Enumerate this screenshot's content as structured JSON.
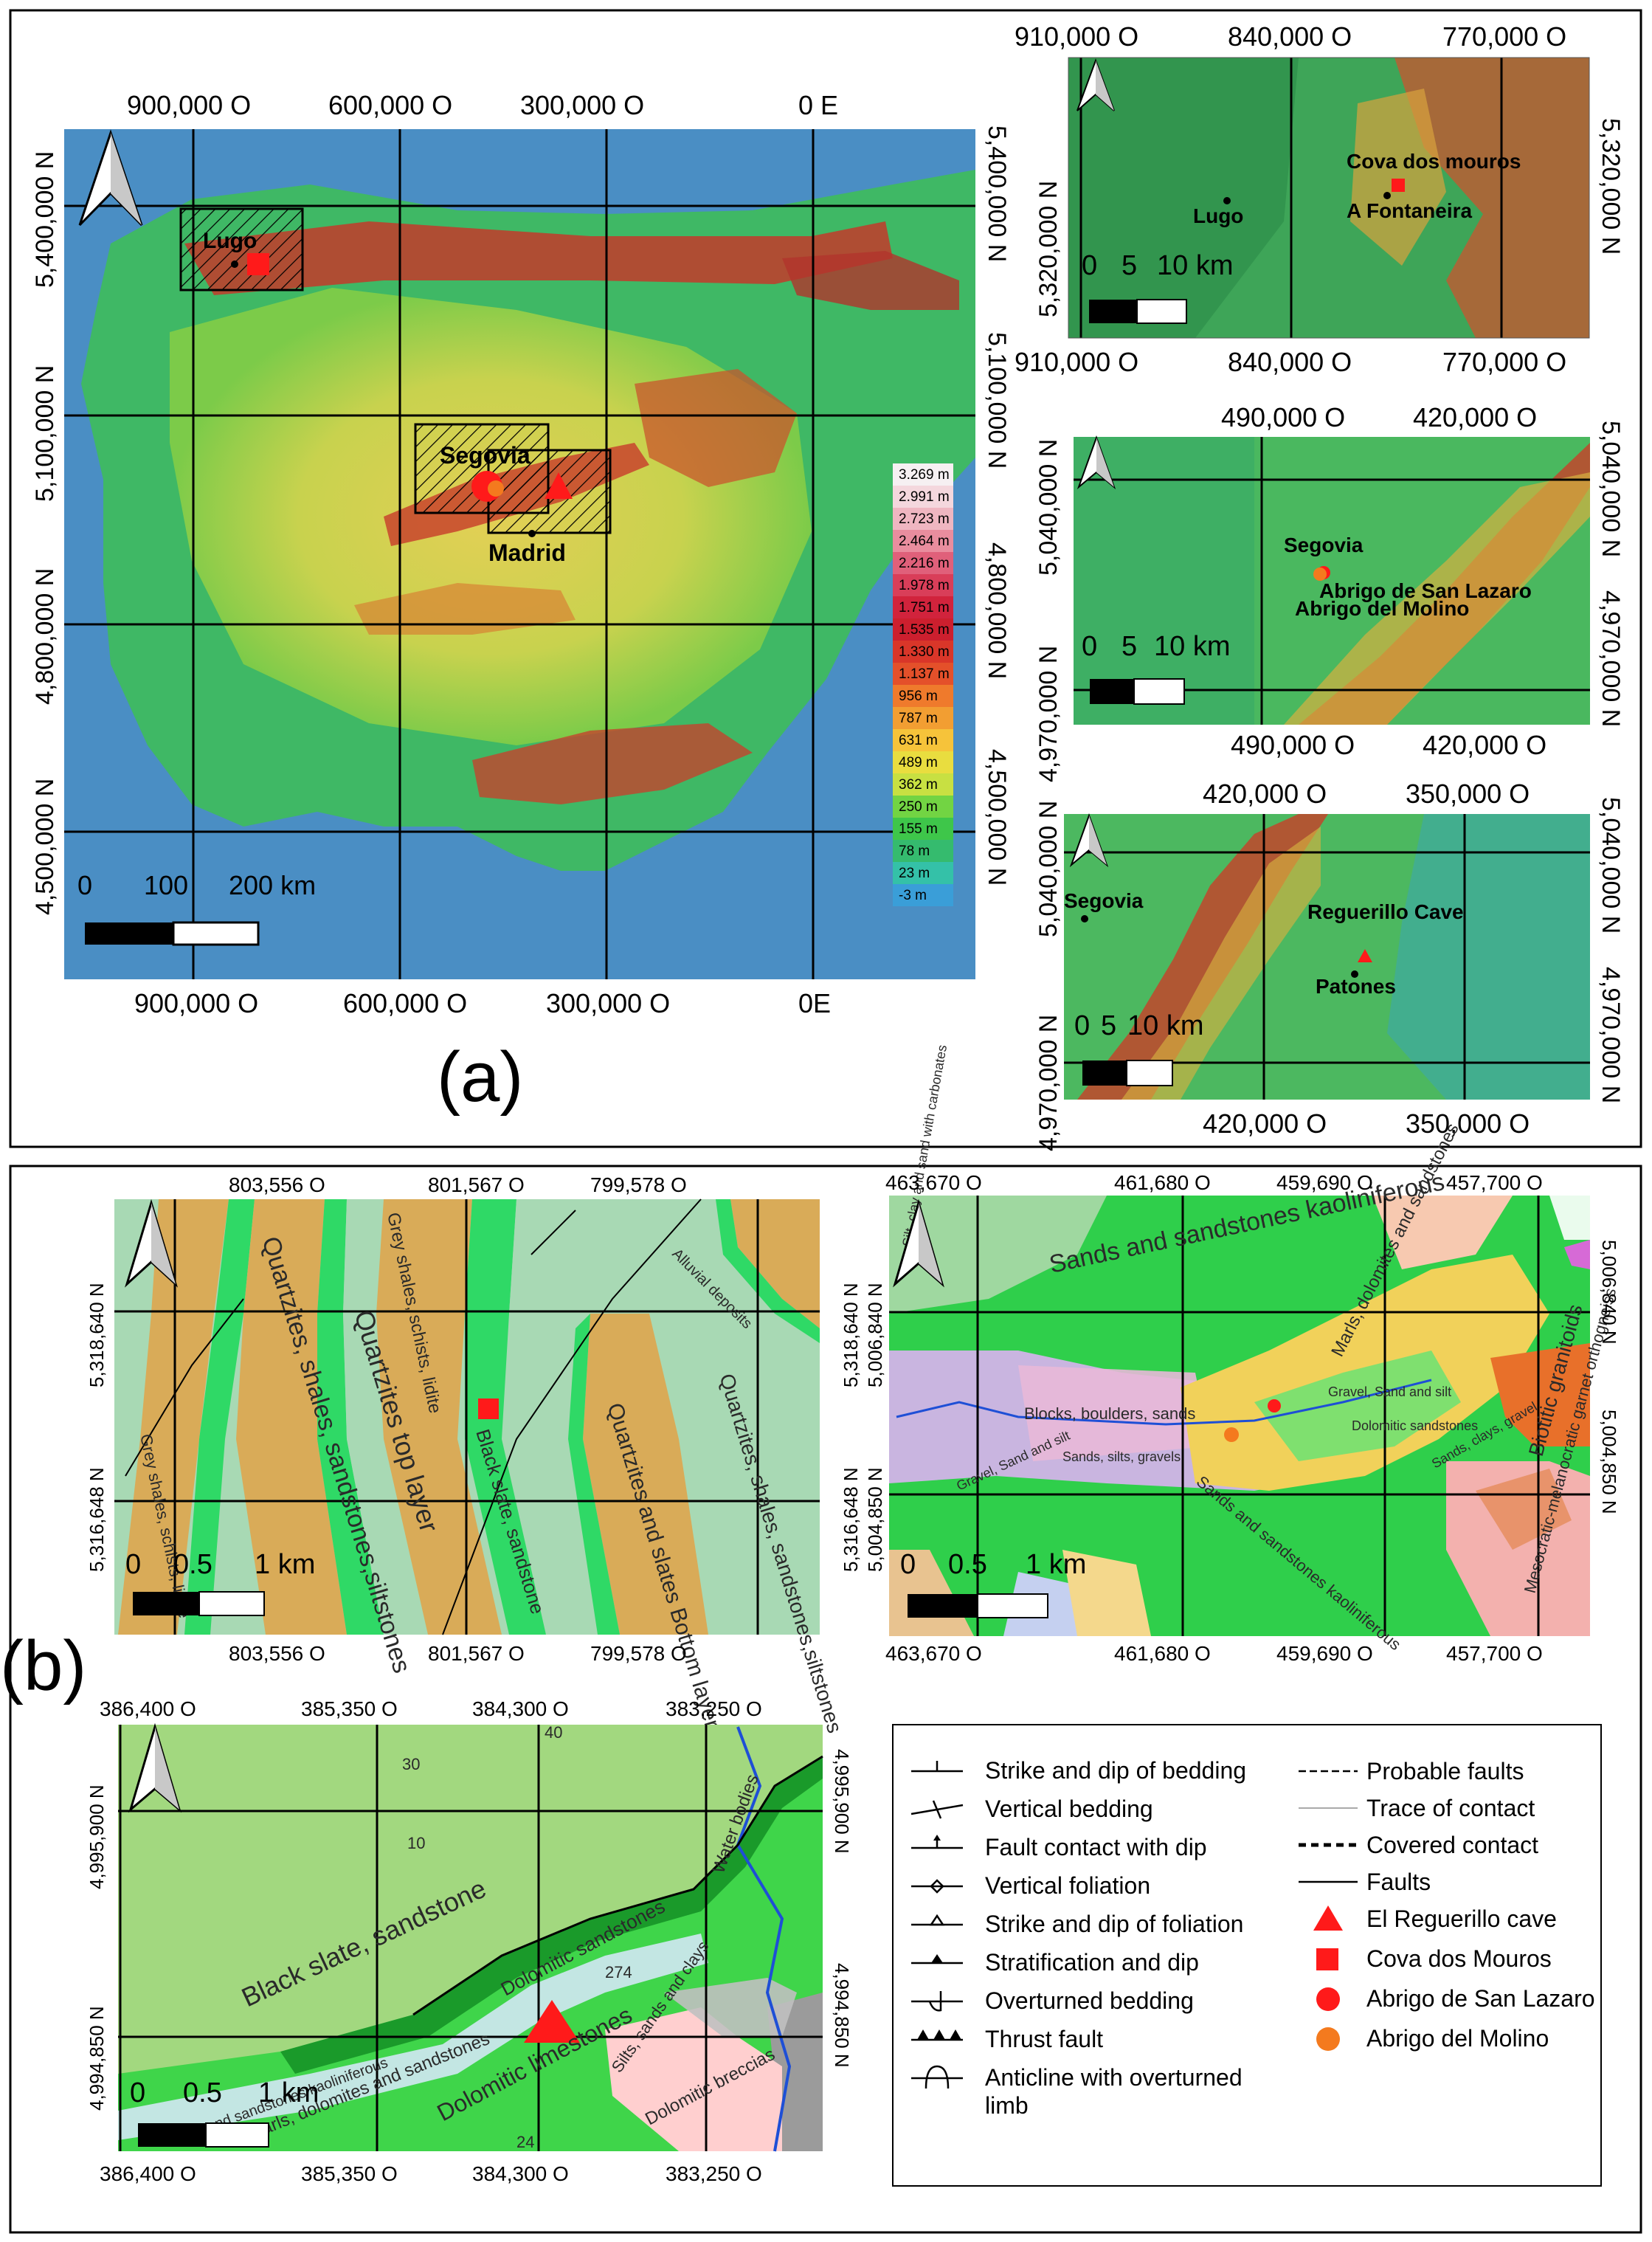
{
  "panel_labels": {
    "a": "(a)",
    "b": "(b)"
  },
  "maps": [
    {
      "id": "iberia",
      "ticks_top": [
        "900,000 O",
        "600,000 O",
        "300,000 O",
        "0 E"
      ],
      "ticks_bottom": [
        "900,000 O",
        "600,000 O",
        "300,000 O",
        "0E"
      ],
      "ticks_left": [
        "5,400,000 N",
        "5,100,000 N",
        "4,800,000 N",
        "4,500,000 N"
      ],
      "ticks_right": [
        "5,400,000 N",
        "5,100,000 N",
        "4,800,000 N",
        "4,500,000 N"
      ],
      "scale": {
        "labels": [
          "0",
          "100",
          "200 km"
        ]
      },
      "places": [
        {
          "name": "Lugo"
        },
        {
          "name": "Segovia"
        },
        {
          "name": "Madrid"
        }
      ],
      "elevation_legend": [
        "3.269 m",
        "2.991 m",
        "2.723 m",
        "2.464 m",
        "2.216 m",
        "1.978 m",
        "1.751 m",
        "1.535 m",
        "1.330 m",
        "1.137 m",
        "956 m",
        "787 m",
        "631 m",
        "489 m",
        "362 m",
        "250 m",
        "155 m",
        "78 m",
        "23 m",
        "-3 m"
      ],
      "elevation_colors": [
        "#f6f0f2",
        "#f4d7dd",
        "#efb6c1",
        "#e98d9e",
        "#e0607a",
        "#d93e59",
        "#d1233c",
        "#cc1f2e",
        "#d93629",
        "#e4502a",
        "#ef7a2c",
        "#f29e32",
        "#f6c33a",
        "#e9dd3f",
        "#c8e042",
        "#72d443",
        "#3ec64a",
        "#35bb6e",
        "#34c1a8",
        "#3a9ed8"
      ]
    },
    {
      "id": "lugo-inset",
      "ticks_top": [
        "910,000 O",
        "840,000 O",
        "770,000 O"
      ],
      "ticks_bottom": [
        "910,000 O",
        "840,000 O",
        "770,000 O"
      ],
      "ticks_left": [
        "5,320,000 N"
      ],
      "ticks_right": [
        "5,320,000 N"
      ],
      "scale": {
        "labels": [
          "0",
          "5",
          "10 km"
        ]
      },
      "places": [
        {
          "name": "Lugo"
        },
        {
          "name": "Cova dos mouros"
        },
        {
          "name": "A Fontaneira"
        }
      ]
    },
    {
      "id": "segovia-inset",
      "ticks_top": [
        "490,000 O",
        "420,000 O"
      ],
      "ticks_bottom": [
        "490,000 O",
        "420,000 O"
      ],
      "ticks_left": [
        "5,040,000 N",
        "4,970,000 N"
      ],
      "ticks_right": [
        "5,040,000 N",
        "4,970,000 N"
      ],
      "scale": {
        "labels": [
          "0",
          "5",
          "10 km"
        ]
      },
      "places": [
        {
          "name": "Segovia"
        },
        {
          "name": "Abrigo de San Lazaro"
        },
        {
          "name": "Abrigo del Molino"
        }
      ]
    },
    {
      "id": "patones-inset",
      "ticks_top": [
        "420,000 O",
        "350,000 O"
      ],
      "ticks_bottom": [
        "420,000 O",
        "350,000 O"
      ],
      "ticks_left": [
        "5,040,000 N",
        "4,970,000 N"
      ],
      "ticks_right": [
        "5,040,000 N",
        "4,970,000 N"
      ],
      "scale": {
        "labels": [
          "0",
          "5",
          "10 km"
        ]
      },
      "places": [
        {
          "name": "Segovia"
        },
        {
          "name": "Reguerillo Cave"
        },
        {
          "name": "Patones"
        }
      ]
    },
    {
      "id": "geo-lugo",
      "ticks_top": [
        "803,556 O",
        "801,567 O",
        "799,578 O"
      ],
      "ticks_bottom": [
        "803,556 O",
        "801,567 O",
        "799,578 O"
      ],
      "ticks_left": [
        "5,318,640 N",
        "5,316,648 N"
      ],
      "scale": {
        "labels": [
          "0",
          "0.5",
          "1 km"
        ]
      },
      "units": [
        "Quartzites, shales, sandstones,siltstones",
        "Quartzites top layer",
        "Grey shales, schists, lidite",
        "Black slate, sandstone",
        "Quartzites and slates Bottom layer.",
        "Quartzites, shales, sandstones,siltstones",
        "Alluvial deposits",
        "Grey shales, schists, lidite"
      ]
    },
    {
      "id": "geo-segovia",
      "ticks_top": [
        "463,670 O",
        "461,680 O",
        "459,690 O",
        "457,700 O"
      ],
      "ticks_bottom": [
        "463,670 O",
        "461,680 O",
        "459,690 O",
        "457,700 O"
      ],
      "ticks_left": [
        "5,318,640 N",
        "5,316,648 N"
      ],
      "ticks_left_inner": [
        "5,006,840 N",
        "5,004,850 N"
      ],
      "ticks_right": [
        "5,006,840 N",
        "5,004,850 N"
      ],
      "scale": {
        "labels": [
          "0",
          "0.5",
          "1 km"
        ]
      },
      "units": [
        "Sands and sandstones kaoliniferous",
        "Blocks, boulders, sands",
        "Marls, dolomites and sandstones",
        "Biotitic granitoids",
        "Sands and sandstones kaoliniferous",
        "Mesocratic-melanocratic garnet orthogneiss",
        "Dolomitic sandstones",
        "Gravel, Sand and silt",
        "Sands, clays, gravel",
        "Silt, clay and sand with carbonates",
        "Gravel, Sand and silt",
        "Sands, silts, gravels"
      ]
    },
    {
      "id": "geo-patones",
      "ticks_top": [
        "386,400 O",
        "385,350 O",
        "384,300 O",
        "383,250 O"
      ],
      "ticks_bottom": [
        "386,400 O",
        "385,350 O",
        "384,300 O",
        "383,250 O"
      ],
      "ticks_left": [
        "4,995,900 N",
        "4,994,850 N"
      ],
      "ticks_right": [
        "4,995,900 N",
        "4,994,850 N"
      ],
      "scale": {
        "labels": [
          "0",
          "0.5",
          "1 km"
        ]
      },
      "units": [
        "Black slate, sandstone",
        "Dolomitic sandstones",
        "Sands and sandstones kaoliniferous",
        "Marls, dolomites and sandstones",
        "Dolomitic limestones",
        "Silts, sands and clays",
        "Dolomitic breccias",
        "Water bodies"
      ],
      "numbers": [
        "30",
        "10",
        "40",
        "274",
        "24"
      ]
    }
  ],
  "legend": {
    "left": [
      {
        "symbol": "strike-dip-bedding",
        "label": "Strike and dip of bedding"
      },
      {
        "symbol": "vertical-bedding",
        "label": "Vertical bedding"
      },
      {
        "symbol": "fault-contact-dip",
        "label": "Fault contact with dip"
      },
      {
        "symbol": "vertical-foliation",
        "label": "Vertical foliation"
      },
      {
        "symbol": "strike-dip-foliation",
        "label": "Strike and dip of foliation"
      },
      {
        "symbol": "stratification-dip",
        "label": "Stratification and dip"
      },
      {
        "symbol": "overturned-bedding",
        "label": "Overturned bedding"
      },
      {
        "symbol": "thrust-fault",
        "label": "Thrust fault"
      },
      {
        "symbol": "anticline-overturned",
        "label": "Anticline with overturned limb"
      }
    ],
    "right": [
      {
        "symbol": "probable-faults",
        "label": "Probable faults"
      },
      {
        "symbol": "trace-contact",
        "label": "Trace of contact"
      },
      {
        "symbol": "covered-contact",
        "label": "Covered contact"
      },
      {
        "symbol": "faults",
        "label": "Faults"
      },
      {
        "symbol": "triangle",
        "label": "El Reguerillo cave",
        "color": "#ff1a1a"
      },
      {
        "symbol": "square",
        "label": "Cova dos Mouros",
        "color": "#ff1a1a"
      },
      {
        "symbol": "circle",
        "label": "Abrigo de San Lazaro",
        "color": "#ff1a1a"
      },
      {
        "symbol": "circle",
        "label": "Abrigo del Molino",
        "color": "#f47a1e"
      }
    ]
  },
  "colors": {
    "sea": "#4a8ec4",
    "lowland": "#3fb865",
    "plateau": "#d7cf4e",
    "mountain": "#c33a2a",
    "geo_tan": "#d9ab58",
    "geo_bright_green": "#2fd966",
    "geo_pale_green": "#a8d9a0",
    "geo_mint": "#9fd8c0",
    "site_red": "#ff1a1a",
    "site_orange": "#f47a1e"
  }
}
